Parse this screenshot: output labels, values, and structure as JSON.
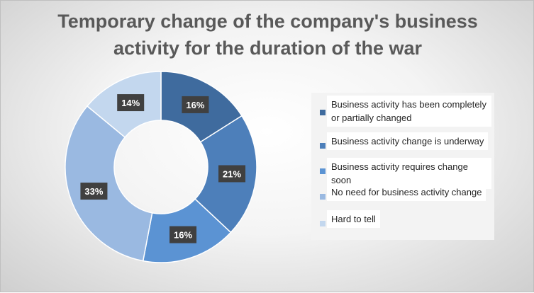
{
  "chart": {
    "title_line1": "Temporary change of the company's business",
    "title_line2": "activity for the duration of the war"
  },
  "colors": {
    "background": "#e6e6e6",
    "label_box": "#404040",
    "label_text": "#ffffff"
  },
  "chart_data": {
    "type": "pie",
    "variant": "donut",
    "title": "Temporary change of the company's business activity for the duration of the war",
    "categories": [
      "Business activity has been completely or partially changed",
      "Business activity change is underway",
      "Business activity requires change soon",
      "No need for business activity change",
      "Hard to tell"
    ],
    "values": [
      16,
      21,
      16,
      33,
      14
    ],
    "data_labels": [
      "16%",
      "21%",
      "16%",
      "33%",
      "14%"
    ],
    "colors": [
      "#3f6b9e",
      "#4d7fba",
      "#5b93d3",
      "#9ab9e1",
      "#c3d7ee"
    ],
    "legend": "right"
  }
}
